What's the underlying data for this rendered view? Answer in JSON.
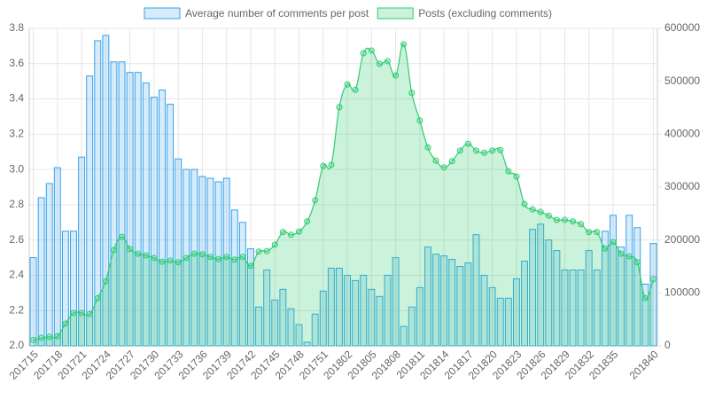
{
  "chart_data": {
    "type": "bar-line",
    "categories": [
      "201715",
      null,
      null,
      "201718",
      null,
      null,
      "201721",
      null,
      null,
      "201724",
      null,
      null,
      "201727",
      null,
      null,
      "201730",
      null,
      null,
      "201733",
      null,
      null,
      "201736",
      null,
      null,
      "201739",
      null,
      null,
      "201742",
      null,
      null,
      "201745",
      null,
      null,
      "201748",
      null,
      null,
      "201751",
      null,
      null,
      "201802",
      null,
      null,
      "201805",
      null,
      null,
      "201808",
      null,
      null,
      "201811",
      null,
      null,
      "201814",
      null,
      null,
      "201817",
      null,
      null,
      "201820",
      null,
      null,
      "201823",
      null,
      null,
      "201826",
      null,
      null,
      "201829",
      null,
      null,
      "201832",
      null,
      null,
      "201835",
      null,
      null,
      null,
      null,
      "201840"
    ],
    "series": [
      {
        "name": "Average number of comments per post",
        "kind": "bar",
        "axis": "y",
        "color": "#36a2eb",
        "fill": "rgba(54,162,235,0.2)",
        "values": [
          2.5,
          2.84,
          2.92,
          3.01,
          2.65,
          2.65,
          3.07,
          3.53,
          3.73,
          3.76,
          3.61,
          3.61,
          3.55,
          3.55,
          3.49,
          3.41,
          3.45,
          3.37,
          3.06,
          3.0,
          3.0,
          2.96,
          2.95,
          2.93,
          2.95,
          2.77,
          2.7,
          2.55,
          2.22,
          2.43,
          2.26,
          2.32,
          2.21,
          2.12,
          2.02,
          2.18,
          2.31,
          2.44,
          2.44,
          2.4,
          2.37,
          2.4,
          2.32,
          2.28,
          2.4,
          2.5,
          2.11,
          2.22,
          2.33,
          2.56,
          2.52,
          2.51,
          2.49,
          2.45,
          2.47,
          2.63,
          2.4,
          2.33,
          2.27,
          2.27,
          2.38,
          2.48,
          2.66,
          2.69,
          2.6,
          2.54,
          2.43,
          2.43,
          2.43,
          2.54,
          2.43,
          2.65,
          2.74,
          2.56,
          2.74,
          2.67,
          2.35,
          2.58
        ]
      },
      {
        "name": "Posts (excluding comments)",
        "kind": "line",
        "axis": "y2",
        "color": "#2ecc71",
        "fill": "rgba(46,204,113,0.25)",
        "values": [
          11000,
          15000,
          17000,
          18000,
          42000,
          62000,
          62000,
          60000,
          90000,
          122000,
          181000,
          206000,
          183000,
          174000,
          171000,
          166000,
          159000,
          161000,
          158000,
          166000,
          174000,
          173000,
          168000,
          164000,
          168000,
          163000,
          168000,
          151000,
          178000,
          179000,
          191000,
          215000,
          210000,
          216000,
          235000,
          275000,
          340000,
          342000,
          451000,
          494000,
          484000,
          553000,
          558000,
          533000,
          538000,
          511000,
          570000,
          478000,
          426000,
          375000,
          350000,
          337000,
          349000,
          369000,
          382000,
          369000,
          365000,
          369000,
          370000,
          330000,
          320000,
          268000,
          258000,
          253000,
          246000,
          238000,
          238000,
          235000,
          230000,
          215000,
          215000,
          184000,
          196000,
          174000,
          169000,
          158000,
          90000,
          126000
        ]
      }
    ],
    "ylim": [
      2.0,
      3.8
    ],
    "yticks": [
      {
        "value": 2,
        "label": "2.0"
      },
      2.2,
      2.4,
      2.6,
      2.8,
      {
        "value": 3,
        "label": "3.0"
      },
      3.2,
      3.4,
      3.6,
      3.8
    ],
    "y2lim": [
      0,
      600000
    ],
    "y2ticks": [
      0,
      100000,
      200000,
      300000,
      400000,
      500000,
      600000
    ],
    "grid": true,
    "legend": "top"
  }
}
